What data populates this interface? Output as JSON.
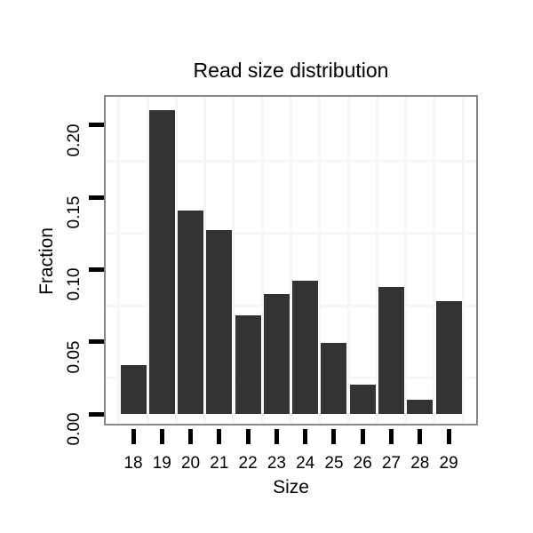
{
  "chart_data": {
    "type": "bar",
    "title": "Read size distribution",
    "xlabel": "Size",
    "ylabel": "Fraction",
    "categories": [
      "18",
      "19",
      "20",
      "21",
      "22",
      "23",
      "24",
      "25",
      "26",
      "27",
      "28",
      "29"
    ],
    "values": [
      0.034,
      0.21,
      0.141,
      0.127,
      0.068,
      0.083,
      0.092,
      0.049,
      0.02,
      0.088,
      0.01,
      0.078
    ],
    "y_ticks": [
      0,
      0.05,
      0.1,
      0.15,
      0.2
    ],
    "y_tick_labels": [
      "0.00",
      "0.05",
      "0.10",
      "0.15",
      "0.20"
    ],
    "y_minor_gridlines": [
      0.025,
      0.075,
      0.125,
      0.175
    ],
    "ylim": [
      -0.008,
      0.221
    ],
    "grid": "minor-only",
    "legend": null,
    "colors": {
      "bar": "#333333",
      "panel_border": "#888888",
      "tick": "#000000",
      "gridline": "#f6f6f6",
      "background": "#ffffff",
      "text": "#000000"
    }
  }
}
